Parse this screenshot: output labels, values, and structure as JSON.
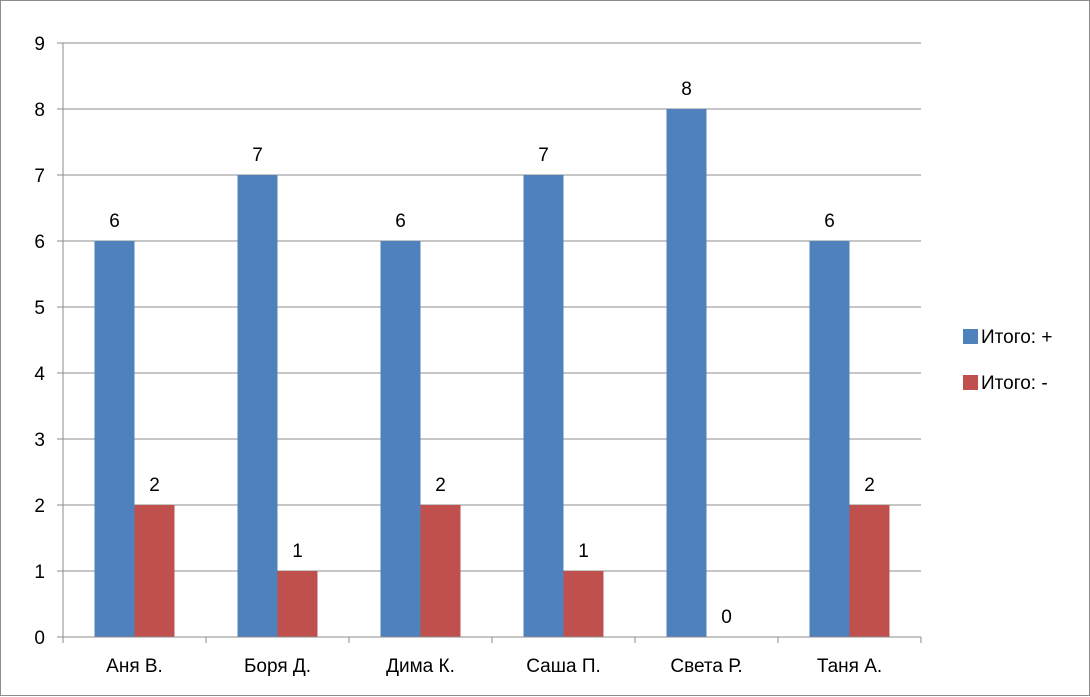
{
  "chart_data": {
    "type": "bar",
    "title": "",
    "xlabel": "",
    "ylabel": "",
    "categories": [
      "Аня В.",
      "Боря Д.",
      "Дима К.",
      "Саша П.",
      "Света Р.",
      "Таня А."
    ],
    "series": [
      {
        "name": "Итого: +",
        "values": [
          6,
          7,
          6,
          7,
          8,
          6
        ],
        "color": "#4f81bd"
      },
      {
        "name": "Итого: -",
        "values": [
          2,
          1,
          2,
          1,
          0,
          2
        ],
        "color": "#c0504d"
      }
    ],
    "ylim": [
      0,
      9
    ],
    "yticks": [
      "0",
      "1",
      "2",
      "3",
      "4",
      "5",
      "6",
      "7",
      "8",
      "9"
    ],
    "grid": true,
    "legend_position": "right",
    "data_labels": true
  }
}
